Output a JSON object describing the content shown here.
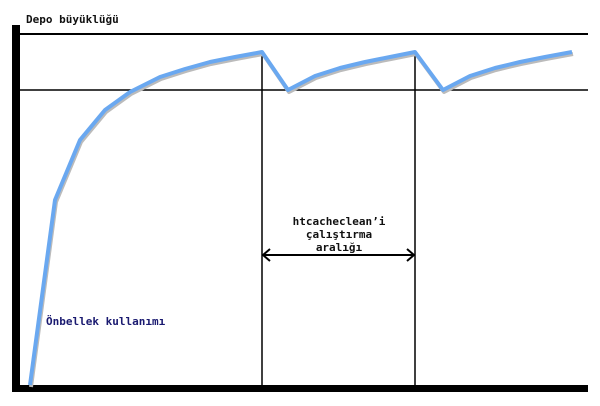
{
  "diagram": {
    "y_axis_label": "Depo büyüklüğü",
    "interval_label_lines": [
      "htcacheclean’i",
      "çalıştırma",
      "aralığı"
    ],
    "curve_label": "Önbellek kullanımı",
    "colors": {
      "curve": "#6aa8f0",
      "curve_label": "#1a1a70",
      "lines": "#000000"
    }
  }
}
